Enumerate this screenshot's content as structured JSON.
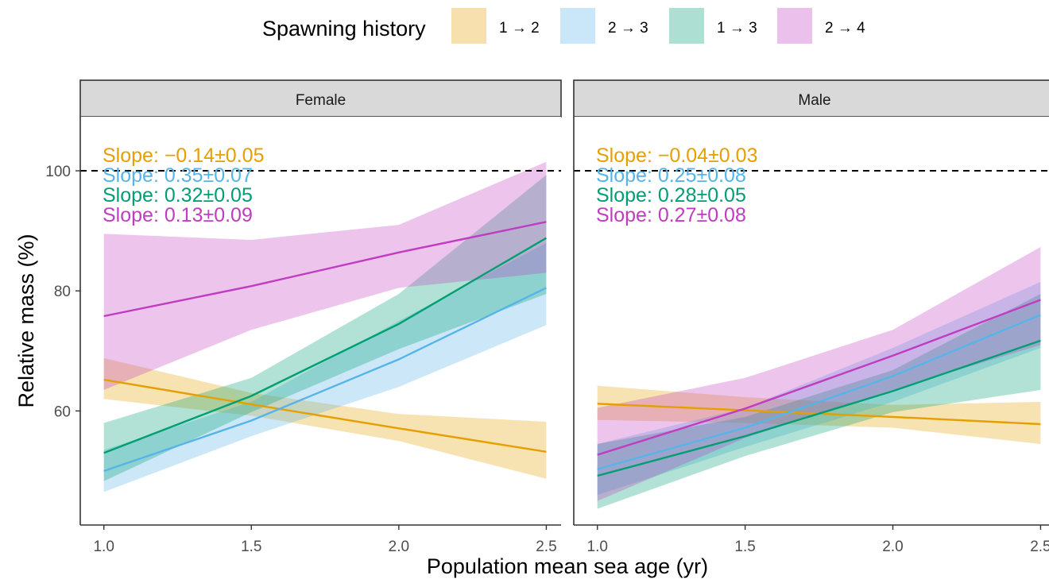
{
  "chart_data": {
    "type": "line",
    "legend": {
      "title": "Spawning history",
      "placement": "top",
      "entries": [
        "1 → 2",
        "2 → 3",
        "1 → 3",
        "2 → 4"
      ]
    },
    "xlabel": "Population mean sea age (yr)",
    "ylabel": "Relative mass (%)",
    "xlim": [
      0.92,
      2.55
    ],
    "ylim": [
      41,
      109
    ],
    "x_ticks": [
      "1.0",
      "1.5",
      "2.0",
      "2.5"
    ],
    "y_ticks": [
      "60",
      "80",
      "100"
    ],
    "reference_line": {
      "y": 100,
      "style": "dashed"
    },
    "grid": false,
    "colors": {
      "1 → 2": "#E69F00",
      "2 → 3": "#56B4E9",
      "1 → 3": "#009E73",
      "2 → 4": "#C03CC0",
      "strip": "#D9D9D9"
    },
    "panels": [
      {
        "title": "Female",
        "series": [
          {
            "name": "1 → 2",
            "slope_label": "Slope: −0.14±0.05",
            "x": [
              1.0,
              1.5,
              2.0,
              2.5
            ],
            "y": [
              65.2,
              61.1,
              57.1,
              53.2
            ],
            "lower": [
              62.0,
              59.2,
              55.0,
              48.7
            ],
            "upper": [
              68.8,
              63.0,
              59.5,
              58.2
            ]
          },
          {
            "name": "2 → 3",
            "slope_label": "Slope: 0.35±0.07",
            "x": [
              1.0,
              1.5,
              2.0,
              2.5
            ],
            "y": [
              50.0,
              58.4,
              68.6,
              80.5
            ],
            "lower": [
              46.5,
              55.8,
              64.0,
              74.3
            ],
            "upper": [
              53.5,
              61.5,
              75.0,
              88.0
            ]
          },
          {
            "name": "1 → 3",
            "slope_label": "Slope: 0.32±0.05",
            "x": [
              1.0,
              1.5,
              2.0,
              2.5
            ],
            "y": [
              53.0,
              62.5,
              74.5,
              88.8
            ],
            "lower": [
              48.3,
              59.8,
              70.3,
              79.5
            ],
            "upper": [
              58.0,
              65.5,
              79.5,
              99.3
            ]
          },
          {
            "name": "2 → 4",
            "slope_label": "Slope: 0.13±0.09",
            "x": [
              1.0,
              1.5,
              2.0,
              2.5
            ],
            "y": [
              75.8,
              80.8,
              86.4,
              91.5
            ],
            "lower": [
              63.5,
              73.5,
              80.5,
              83.0
            ],
            "upper": [
              89.5,
              88.5,
              91.0,
              101.5
            ]
          }
        ]
      },
      {
        "title": "Male",
        "series": [
          {
            "name": "1 → 2",
            "slope_label": "Slope: −0.04±0.03",
            "x": [
              1.0,
              1.5,
              2.0,
              2.5
            ],
            "y": [
              61.2,
              60.1,
              59.0,
              57.8
            ],
            "lower": [
              58.5,
              58.0,
              57.2,
              54.5
            ],
            "upper": [
              64.2,
              62.3,
              61.0,
              61.5
            ]
          },
          {
            "name": "2 → 3",
            "slope_label": "Slope: 0.25±0.08",
            "x": [
              1.0,
              1.5,
              2.0,
              2.5
            ],
            "y": [
              50.3,
              57.2,
              65.8,
              76.0
            ],
            "lower": [
              46.0,
              54.0,
              61.5,
              70.5
            ],
            "upper": [
              54.5,
              60.5,
              70.5,
              81.5
            ]
          },
          {
            "name": "1 → 3",
            "slope_label": "Slope: 0.28±0.05",
            "x": [
              1.0,
              1.5,
              2.0,
              2.5
            ],
            "y": [
              49.2,
              55.8,
              63.3,
              71.7
            ],
            "lower": [
              43.7,
              52.5,
              59.8,
              63.5
            ],
            "upper": [
              54.5,
              59.0,
              66.8,
              79.5
            ]
          },
          {
            "name": "2 → 4",
            "slope_label": "Slope: 0.27±0.08",
            "x": [
              1.0,
              1.5,
              2.0,
              2.5
            ],
            "y": [
              52.7,
              60.4,
              69.2,
              78.5
            ],
            "lower": [
              45.0,
              55.5,
              63.5,
              71.0
            ],
            "upper": [
              60.5,
              65.5,
              73.5,
              87.3
            ]
          }
        ]
      }
    ]
  }
}
